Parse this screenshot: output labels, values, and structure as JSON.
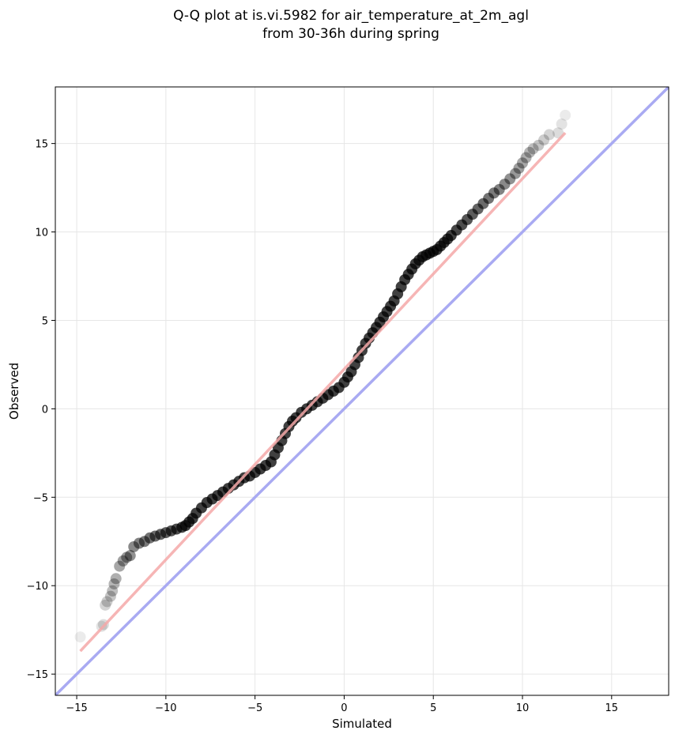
{
  "chart_data": {
    "type": "scatter",
    "title": "Q-Q plot at is.vi.5982 for air_temperature_at_2m_agl",
    "subtitle": "from 30-36h during spring",
    "xlabel": "Simulated",
    "ylabel": "Observed",
    "xlim": [
      -16.2,
      18.2
    ],
    "ylim": [
      -16.2,
      18.2
    ],
    "xticks": [
      -15,
      -10,
      -5,
      0,
      5,
      10,
      15
    ],
    "yticks": [
      -15,
      -10,
      -5,
      0,
      5,
      10,
      15
    ],
    "xtick_labels": [
      "−15",
      "−10",
      "−5",
      "0",
      "5",
      "10",
      "15"
    ],
    "ytick_labels": [
      "−15",
      "−10",
      "−5",
      "0",
      "5",
      "10",
      "15"
    ],
    "grid": true,
    "legend": "none",
    "quantile_points": {
      "x": [
        -14.8,
        -13.6,
        -13.5,
        -13.4,
        -13.3,
        -13.1,
        -13.0,
        -12.9,
        -12.8,
        -12.6,
        -12.4,
        -12.2,
        -12.0,
        -11.8,
        -11.5,
        -11.2,
        -10.9,
        -10.6,
        -10.3,
        -10.0,
        -9.7,
        -9.4,
        -9.1,
        -8.9,
        -8.7,
        -8.5,
        -8.3,
        -8.0,
        -7.7,
        -7.4,
        -7.1,
        -6.8,
        -6.5,
        -6.2,
        -5.9,
        -5.6,
        -5.3,
        -5.0,
        -4.7,
        -4.4,
        -4.1,
        -3.9,
        -3.7,
        -3.5,
        -3.3,
        -3.1,
        -2.9,
        -2.7,
        -2.4,
        -2.1,
        -1.8,
        -1.5,
        -1.2,
        -0.9,
        -0.6,
        -0.3,
        0.0,
        0.2,
        0.4,
        0.6,
        0.8,
        1.0,
        1.2,
        1.4,
        1.6,
        1.8,
        2.0,
        2.2,
        2.4,
        2.6,
        2.8,
        3.0,
        3.2,
        3.4,
        3.6,
        3.8,
        4.0,
        4.2,
        4.4,
        4.6,
        4.8,
        5.0,
        5.2,
        5.4,
        5.6,
        5.8,
        6.0,
        6.3,
        6.6,
        6.9,
        7.2,
        7.5,
        7.8,
        8.1,
        8.4,
        8.7,
        9.0,
        9.3,
        9.6,
        9.8,
        10.0,
        10.2,
        10.4,
        10.6,
        10.9,
        11.2,
        11.5,
        12.0,
        12.2,
        12.4
      ],
      "y": [
        -12.9,
        -12.3,
        -12.2,
        -11.1,
        -10.9,
        -10.6,
        -10.3,
        -9.9,
        -9.6,
        -8.9,
        -8.6,
        -8.4,
        -8.3,
        -7.8,
        -7.6,
        -7.5,
        -7.3,
        -7.2,
        -7.1,
        -7.0,
        -6.9,
        -6.8,
        -6.7,
        -6.6,
        -6.4,
        -6.2,
        -5.9,
        -5.6,
        -5.3,
        -5.1,
        -4.9,
        -4.7,
        -4.5,
        -4.3,
        -4.1,
        -3.9,
        -3.8,
        -3.6,
        -3.4,
        -3.2,
        -3.0,
        -2.6,
        -2.2,
        -1.8,
        -1.4,
        -1.0,
        -0.7,
        -0.5,
        -0.2,
        0.0,
        0.2,
        0.4,
        0.6,
        0.8,
        1.0,
        1.2,
        1.5,
        1.8,
        2.1,
        2.5,
        2.9,
        3.3,
        3.7,
        4.0,
        4.3,
        4.6,
        4.9,
        5.2,
        5.5,
        5.8,
        6.1,
        6.5,
        6.9,
        7.3,
        7.6,
        7.9,
        8.2,
        8.4,
        8.6,
        8.7,
        8.8,
        8.9,
        9.0,
        9.2,
        9.4,
        9.6,
        9.8,
        10.1,
        10.4,
        10.7,
        11.0,
        11.3,
        11.6,
        11.9,
        12.2,
        12.4,
        12.7,
        13.0,
        13.3,
        13.6,
        13.9,
        14.2,
        14.5,
        14.7,
        14.9,
        15.2,
        15.5,
        15.6,
        16.1,
        16.6
      ]
    },
    "fit_line": {
      "x": [
        -14.8,
        12.4
      ],
      "y": [
        -13.7,
        15.6
      ],
      "color": "#f4a8a8"
    },
    "identity_line": {
      "x": [
        -16.2,
        18.2
      ],
      "y": [
        -16.2,
        18.2
      ],
      "color": "#a9aaf2"
    },
    "marker_color": "#000000"
  }
}
